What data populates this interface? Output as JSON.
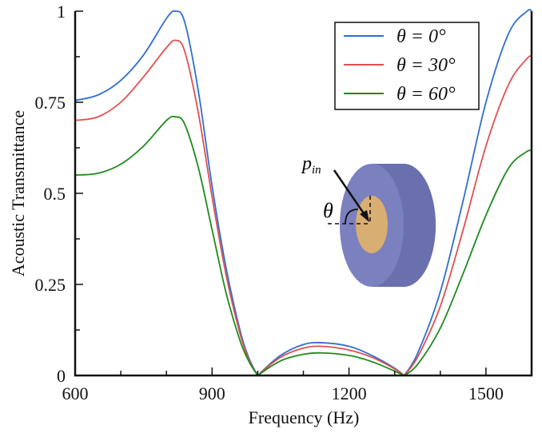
{
  "chart_data": {
    "type": "line",
    "xlabel": "Frequency (Hz)",
    "ylabel": "Acoustic Transmittance",
    "xlim": [
      600,
      1600
    ],
    "ylim": [
      0,
      1
    ],
    "xticks": [
      "600",
      "900",
      "1200",
      "1500"
    ],
    "yticks": [
      "0",
      "0.25",
      "0.5",
      "0.75",
      "1"
    ],
    "xminor_step": 100,
    "grid": false,
    "legend_position": "top-right",
    "x": [
      600,
      650,
      700,
      750,
      800,
      820,
      840,
      870,
      900,
      930,
      960,
      980,
      1000,
      1050,
      1100,
      1140,
      1200,
      1250,
      1300,
      1320,
      1350,
      1400,
      1450,
      1500,
      1550,
      1590,
      1600
    ],
    "series": [
      {
        "name": "θ = 0°",
        "color": "#2f6fd0",
        "values": [
          0.755,
          0.77,
          0.81,
          0.88,
          0.98,
          1.0,
          0.97,
          0.78,
          0.52,
          0.3,
          0.13,
          0.05,
          0,
          0.055,
          0.085,
          0.09,
          0.08,
          0.055,
          0.02,
          0,
          0.06,
          0.23,
          0.48,
          0.75,
          0.94,
          1.0,
          1.0
        ]
      },
      {
        "name": "θ = 30°",
        "color": "#e05050",
        "values": [
          0.7,
          0.71,
          0.75,
          0.82,
          0.9,
          0.92,
          0.89,
          0.72,
          0.49,
          0.28,
          0.12,
          0.045,
          0,
          0.05,
          0.075,
          0.08,
          0.07,
          0.05,
          0.018,
          0,
          0.05,
          0.19,
          0.4,
          0.63,
          0.8,
          0.87,
          0.875
        ]
      },
      {
        "name": "θ = 60°",
        "color": "#1e8a1e",
        "values": [
          0.55,
          0.555,
          0.58,
          0.63,
          0.7,
          0.71,
          0.69,
          0.57,
          0.4,
          0.23,
          0.1,
          0.04,
          0,
          0.04,
          0.058,
          0.062,
          0.055,
          0.038,
          0.012,
          0,
          0.03,
          0.13,
          0.28,
          0.44,
          0.57,
          0.615,
          0.615
        ]
      }
    ],
    "annotations": {
      "pressure_label": "p",
      "pressure_sub": "in",
      "angle_label": "θ"
    }
  }
}
